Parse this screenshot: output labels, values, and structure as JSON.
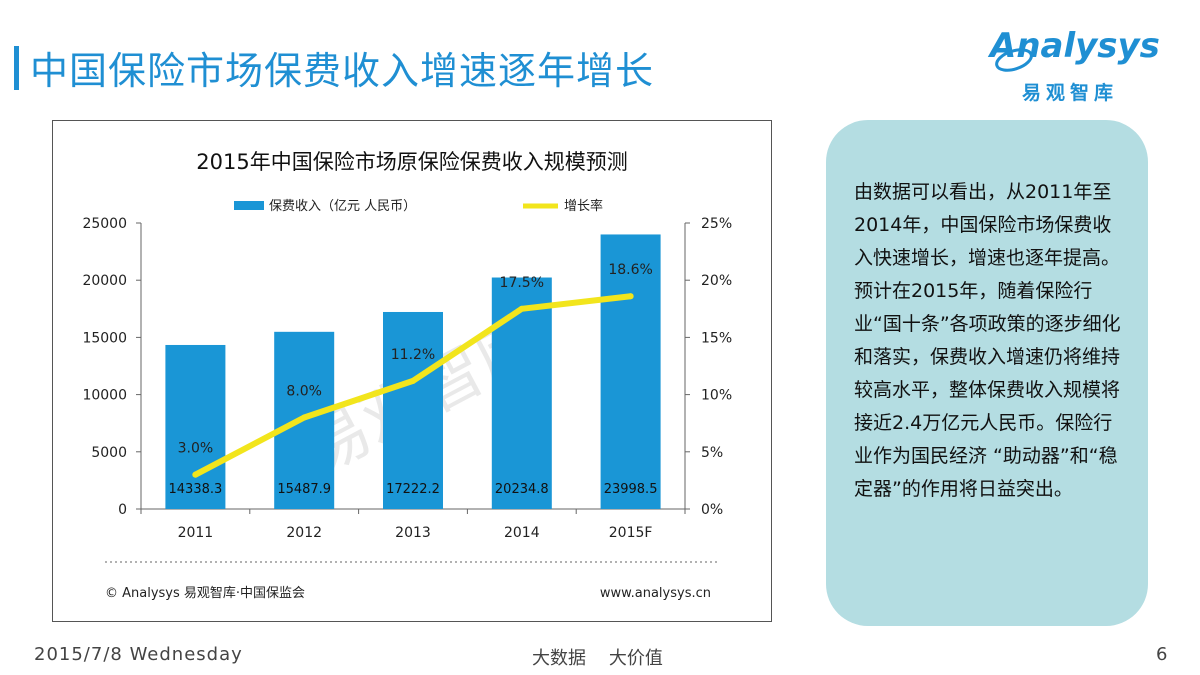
{
  "slide": {
    "title": "中国保险市场保费收入增速逐年增长",
    "footer_date": "2015/7/8 Wednesday",
    "footer_slogan": "大数据    大价值",
    "page_number": "6"
  },
  "logo": {
    "brand": "Analysys",
    "brand_cn": "易观智库",
    "color": "#1f8fd3"
  },
  "watermark": "易观智库",
  "side_panel": {
    "text": "由数据可以看出，从2011年至2014年，中国保险市场保费收入快速增长，增速也逐年提高。预计在2015年，随着保险行业“国十条”各项政策的逐步细化和落实，保费收入增速仍将维持较高水平，整体保费收入规模将接近2.4万亿元人民币。保险行业作为国民经济 “助动器”和“稳定器”的作用将日益突出。"
  },
  "chart_data": {
    "type": "bar",
    "title": "2015年中国保险市场原保险保费收入规模预测",
    "categories": [
      "2011",
      "2012",
      "2013",
      "2014",
      "2015F"
    ],
    "series": [
      {
        "name": "保费收入（亿元 人民币）",
        "type": "bar",
        "axis": "left",
        "values": [
          14338.3,
          15487.9,
          17222.2,
          20234.8,
          23998.5
        ],
        "labels": [
          "14338.3",
          "15487.9",
          "17222.2",
          "20234.8",
          "23998.5"
        ],
        "color": "#1a96d6"
      },
      {
        "name": "增长率",
        "type": "line",
        "axis": "right",
        "values": [
          3.0,
          8.0,
          11.2,
          17.5,
          18.6
        ],
        "labels": [
          "3.0%",
          "8.0%",
          "11.2%",
          "17.5%",
          "18.6%"
        ],
        "color": "#f2e51c"
      }
    ],
    "y_left": {
      "min": 0,
      "max": 25000,
      "ticks": [
        "0",
        "5000",
        "10000",
        "15000",
        "20000",
        "25000"
      ]
    },
    "y_right": {
      "min": 0,
      "max": 25,
      "ticks": [
        "0%",
        "5%",
        "10%",
        "15%",
        "20%",
        "25%"
      ]
    },
    "source": "© Analysys 易观智库·中国保监会",
    "website": "www.analysys.cn"
  }
}
